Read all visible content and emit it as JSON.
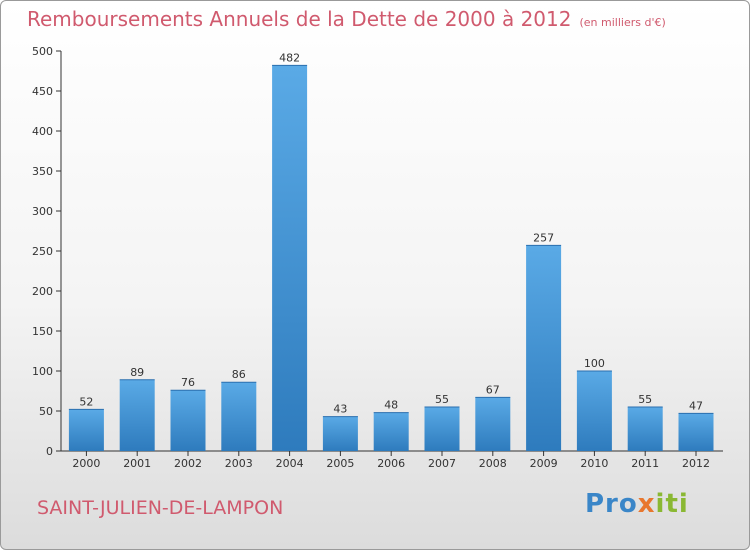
{
  "title": "Remboursements Annuels de la Dette de 2000 à 2012",
  "unit": "(en milliers d'€)",
  "commune": "SAINT-JULIEN-DE-LAMPON",
  "brand": {
    "part1": "Pro",
    "part2": "x",
    "part3": "iti"
  },
  "colors": {
    "title": "#d05a6e",
    "bar_light": "#5aaae6",
    "bar_dark": "#2e7bbd",
    "axis": "#333333"
  },
  "chart_data": {
    "type": "bar",
    "categories": [
      "2000",
      "2001",
      "2002",
      "2003",
      "2004",
      "2005",
      "2006",
      "2007",
      "2008",
      "2009",
      "2010",
      "2011",
      "2012"
    ],
    "values": [
      52,
      89,
      76,
      86,
      482,
      43,
      48,
      55,
      67,
      257,
      100,
      55,
      47
    ],
    "ylim": [
      0,
      500
    ],
    "yticks": [
      0,
      50,
      100,
      150,
      200,
      250,
      300,
      350,
      400,
      450,
      500
    ],
    "grid": false,
    "data_labels": true
  }
}
